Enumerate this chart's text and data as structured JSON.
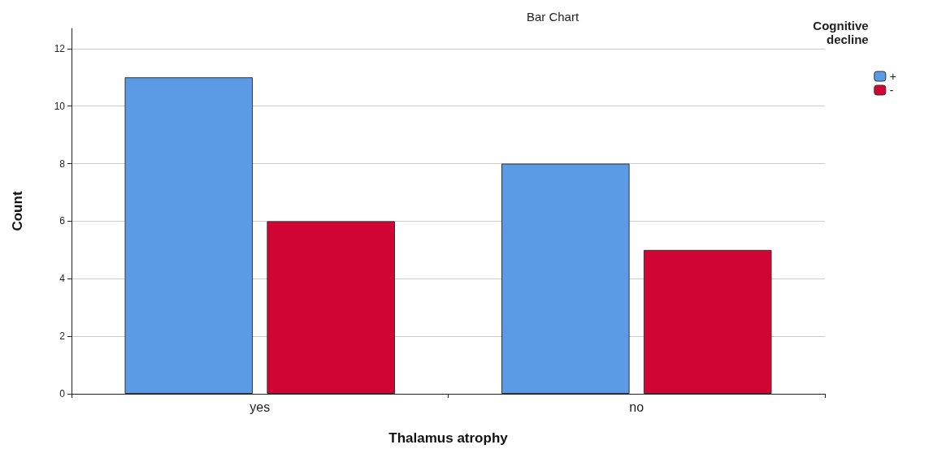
{
  "chart_data": {
    "type": "bar",
    "title": "Bar Chart",
    "xlabel": "Thalamus atrophy",
    "ylabel": "Count",
    "legend_title": "Cognitive\ndecline",
    "categories": [
      "yes",
      "no"
    ],
    "series": [
      {
        "name": "+",
        "color": "#5b9be6",
        "values": [
          11,
          8
        ]
      },
      {
        "name": "-",
        "color": "#d10534",
        "values": [
          6,
          5
        ]
      }
    ],
    "ylim": [
      0,
      12.7
    ],
    "yticks": [
      0,
      2,
      4,
      6,
      8,
      10,
      12
    ],
    "grid": "y",
    "legend": "top right"
  }
}
